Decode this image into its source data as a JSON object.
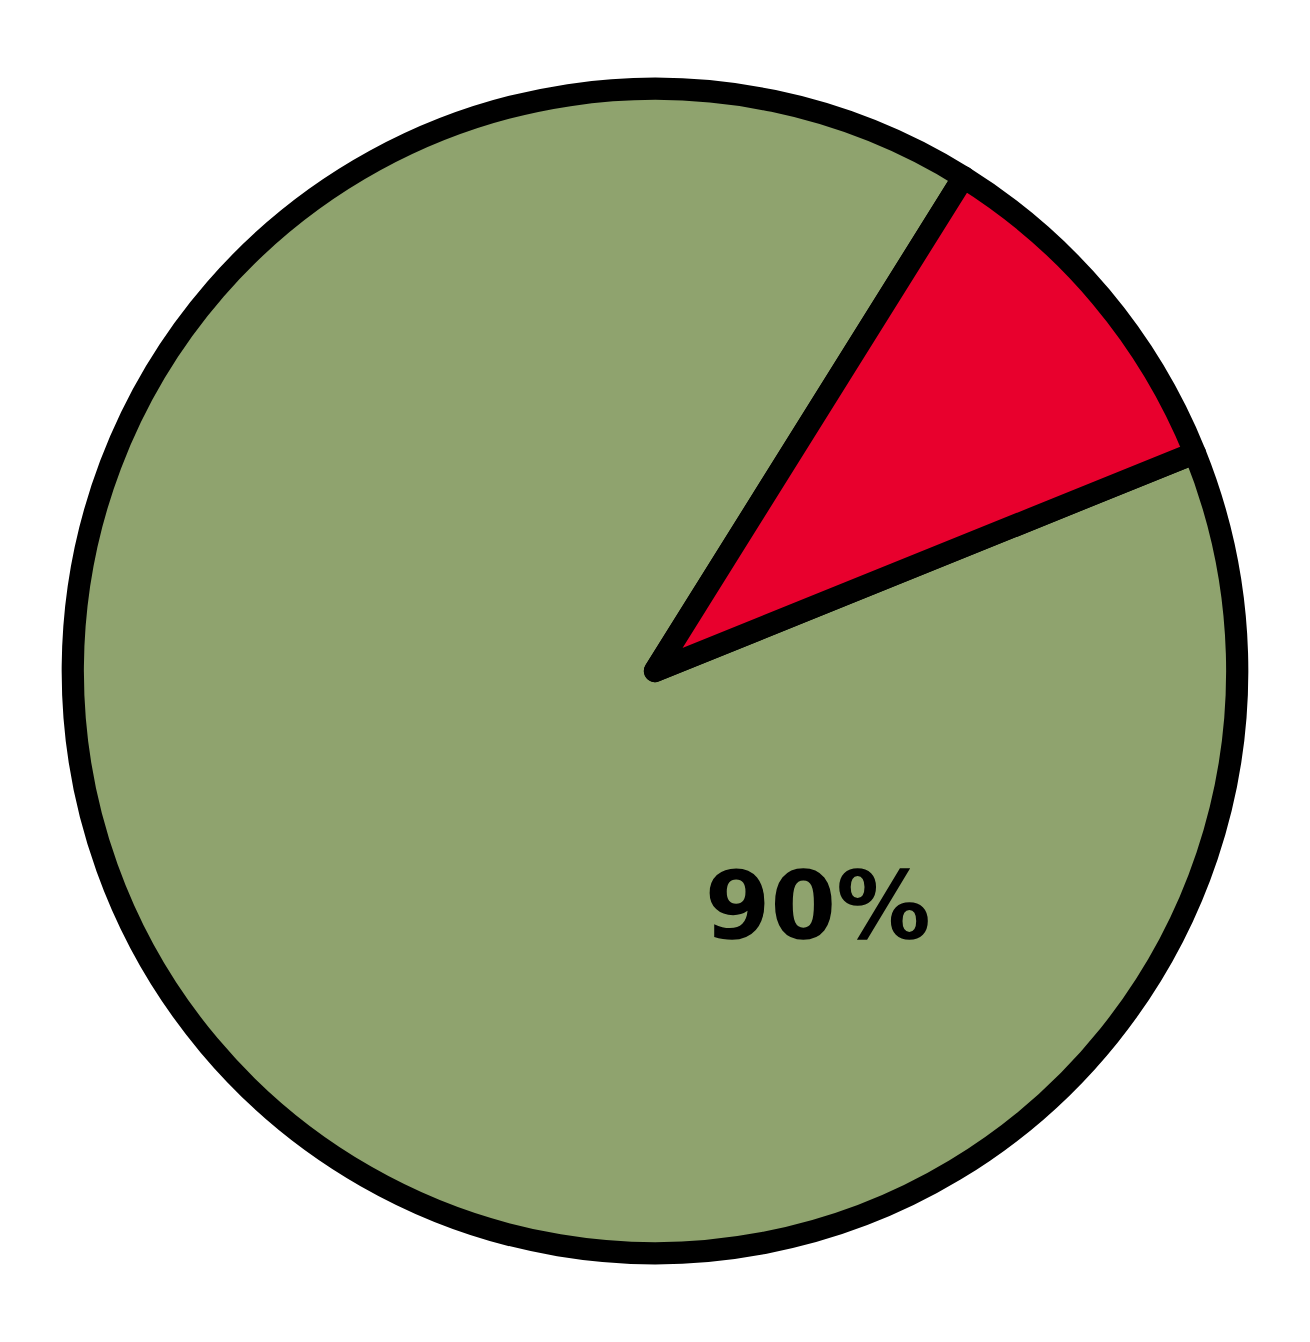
{
  "chart_data": {
    "type": "pie",
    "categories": [
      null,
      null
    ],
    "values": [
      90,
      10
    ],
    "colors": [
      "#8fa36e",
      "#e8002d"
    ],
    "value_labels": [
      "90%",
      null
    ]
  }
}
